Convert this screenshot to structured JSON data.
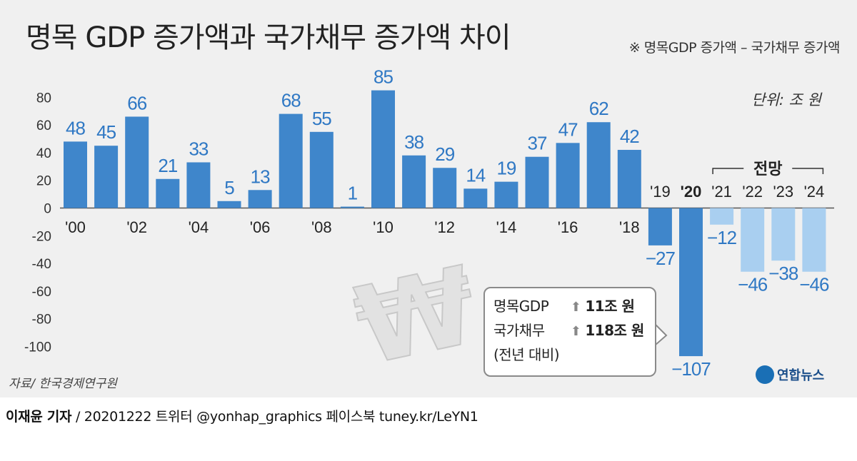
{
  "title": "명목 GDP 증가액과 국가채무 증가액 차이",
  "note": "※ 명목GDP 증가액 – 국가채무 증가액",
  "unit": "단위: 조 원",
  "source": "자료/ 한국경제연구원",
  "forecast_label": "전망",
  "callout": {
    "row1_name": "명목GDP",
    "row1_arrow": "⬆",
    "row1_value": "11조 원",
    "row2_name": "국가채무",
    "row2_arrow": "⬆",
    "row2_value": "118조 원",
    "row3": "(전년 대비)"
  },
  "logo_text": "연합뉴스",
  "byline": {
    "author": "이재윤 기자",
    "rest": " / 20201222   트위터 @yonhap_graphics  페이스북 tuney.kr/LeYN1"
  },
  "colors": {
    "positive": "#3f86cb",
    "negative_actual": "#3f86cb",
    "forecast": "#a9cff0",
    "label": "#2f78c4"
  },
  "chart_data": {
    "type": "bar",
    "categories": [
      "'00",
      "'01",
      "'02",
      "'03",
      "'04",
      "'05",
      "'06",
      "'07",
      "'08",
      "'09",
      "'10",
      "'11",
      "'12",
      "'13",
      "'14",
      "'15",
      "'16",
      "'17",
      "'18",
      "'19",
      "'20",
      "'21",
      "'22",
      "'23",
      "'24"
    ],
    "x_tick_labels": [
      "'00",
      "'02",
      "'04",
      "'06",
      "'08",
      "'10",
      "'12",
      "'14",
      "'16",
      "'18",
      "'19",
      "'20",
      "'21",
      "'22",
      "'23",
      "'24"
    ],
    "values": [
      48,
      45,
      66,
      21,
      33,
      5,
      13,
      68,
      55,
      1,
      85,
      38,
      29,
      14,
      19,
      37,
      47,
      62,
      42,
      -27,
      -107,
      -12,
      -46,
      -38,
      -46
    ],
    "forecast": [
      false,
      false,
      false,
      false,
      false,
      false,
      false,
      false,
      false,
      false,
      false,
      false,
      false,
      false,
      false,
      false,
      false,
      false,
      false,
      false,
      false,
      true,
      true,
      true,
      true
    ],
    "y_ticks": [
      80,
      60,
      40,
      20,
      0,
      -20,
      -40,
      -60,
      -80,
      -100
    ],
    "ylim": [
      -110,
      90
    ],
    "title": "명목 GDP 증가액과 국가채무 증가액 차이",
    "ylabel": "단위: 조 원"
  }
}
